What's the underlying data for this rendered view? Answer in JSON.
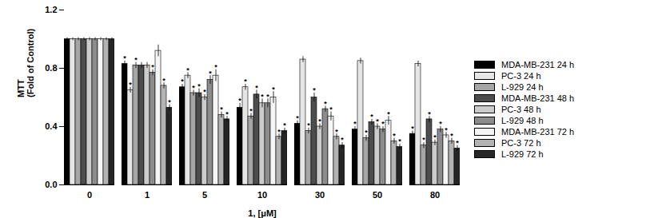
{
  "chart_data": {
    "type": "bar",
    "x_label": "1, [μM]",
    "y_label": "MTT\n(Fold of Control)",
    "categories": [
      "0",
      "1",
      "5",
      "10",
      "30",
      "50",
      "80"
    ],
    "ylim": [
      0,
      1.2
    ],
    "yticks": [
      {
        "value": 0,
        "label": "0.0"
      },
      {
        "value": 0.4,
        "label": "0.4"
      },
      {
        "value": 0.8,
        "label": "0.8"
      },
      {
        "value": 1.2,
        "label": "1.2"
      }
    ],
    "legend": "right",
    "series": [
      {
        "name": "MDA-MB-231 24 h",
        "color": "#000000",
        "values": [
          1.0,
          0.83,
          0.67,
          0.53,
          0.42,
          0.38,
          0.35
        ],
        "errors": [
          0.01,
          0.02,
          0.02,
          0.03,
          0.02,
          0.02,
          0.02
        ],
        "annotations": [
          null,
          "*",
          "*",
          "*",
          "*",
          "*",
          "*"
        ]
      },
      {
        "name": "PC-3 24 h",
        "color": "#e6e6e6",
        "values": [
          1.0,
          0.65,
          0.75,
          0.67,
          0.86,
          0.85,
          0.83
        ],
        "errors": [
          0.01,
          0.02,
          0.02,
          0.02,
          0.02,
          0.02,
          0.02
        ],
        "annotations": [
          null,
          "*",
          "*",
          "*",
          null,
          null,
          null
        ]
      },
      {
        "name": "L-929 24 h",
        "color": "#a6a6a6",
        "values": [
          1.0,
          0.82,
          0.63,
          0.47,
          0.37,
          0.32,
          0.27
        ],
        "errors": [
          0.01,
          0.02,
          0.02,
          0.02,
          0.02,
          0.02,
          0.02
        ],
        "annotations": [
          null,
          "*",
          "*",
          "*",
          "*",
          "*",
          "*"
        ]
      },
      {
        "name": "MDA-MB-231 48 h",
        "color": "#4d4d4d",
        "values": [
          1.0,
          0.82,
          0.63,
          0.62,
          0.6,
          0.43,
          0.45
        ],
        "errors": [
          0.01,
          0.02,
          0.03,
          0.03,
          0.03,
          0.02,
          0.02
        ],
        "annotations": [
          null,
          null,
          "*",
          "*",
          "*",
          "*",
          "*"
        ]
      },
      {
        "name": "PC-3 48 h",
        "color": "#cccccc",
        "values": [
          1.0,
          0.82,
          0.6,
          0.56,
          0.4,
          0.4,
          0.29
        ],
        "errors": [
          0.01,
          0.02,
          0.02,
          0.03,
          0.02,
          0.02,
          0.02
        ],
        "annotations": [
          null,
          null,
          "*",
          "*",
          "*",
          "*",
          "*"
        ]
      },
      {
        "name": "L-929 48 h",
        "color": "#8c8c8c",
        "values": [
          1.0,
          0.77,
          0.72,
          0.56,
          0.52,
          0.38,
          0.38
        ],
        "errors": [
          0.01,
          0.02,
          0.03,
          0.03,
          0.02,
          0.02,
          0.02
        ],
        "annotations": [
          null,
          "*",
          "*",
          "*",
          "*",
          "*",
          "*"
        ]
      },
      {
        "name": "MDA-MB-231 72 h",
        "color": "#f5f5f5",
        "values": [
          1.0,
          0.92,
          0.75,
          0.6,
          0.47,
          0.44,
          0.34
        ],
        "errors": [
          0.01,
          0.04,
          0.04,
          0.04,
          0.03,
          0.03,
          0.02
        ],
        "annotations": [
          null,
          null,
          "*",
          "*",
          "*",
          "*",
          "*"
        ]
      },
      {
        "name": "PC-3 72 h",
        "color": "#b3b3b3",
        "values": [
          1.0,
          0.68,
          0.48,
          0.33,
          0.33,
          0.3,
          0.3
        ],
        "errors": [
          0.01,
          0.02,
          0.02,
          0.02,
          0.02,
          0.02,
          0.02
        ],
        "annotations": [
          null,
          "*",
          "*",
          "*",
          "*",
          "*",
          "*"
        ]
      },
      {
        "name": "L-929 72 h",
        "color": "#262626",
        "values": [
          1.0,
          0.53,
          0.45,
          0.37,
          0.27,
          0.26,
          0.25
        ],
        "errors": [
          0.01,
          0.02,
          0.02,
          0.02,
          0.02,
          0.02,
          0.02
        ],
        "annotations": [
          null,
          "*",
          "*",
          "*",
          "*",
          "*",
          "*"
        ]
      }
    ]
  }
}
